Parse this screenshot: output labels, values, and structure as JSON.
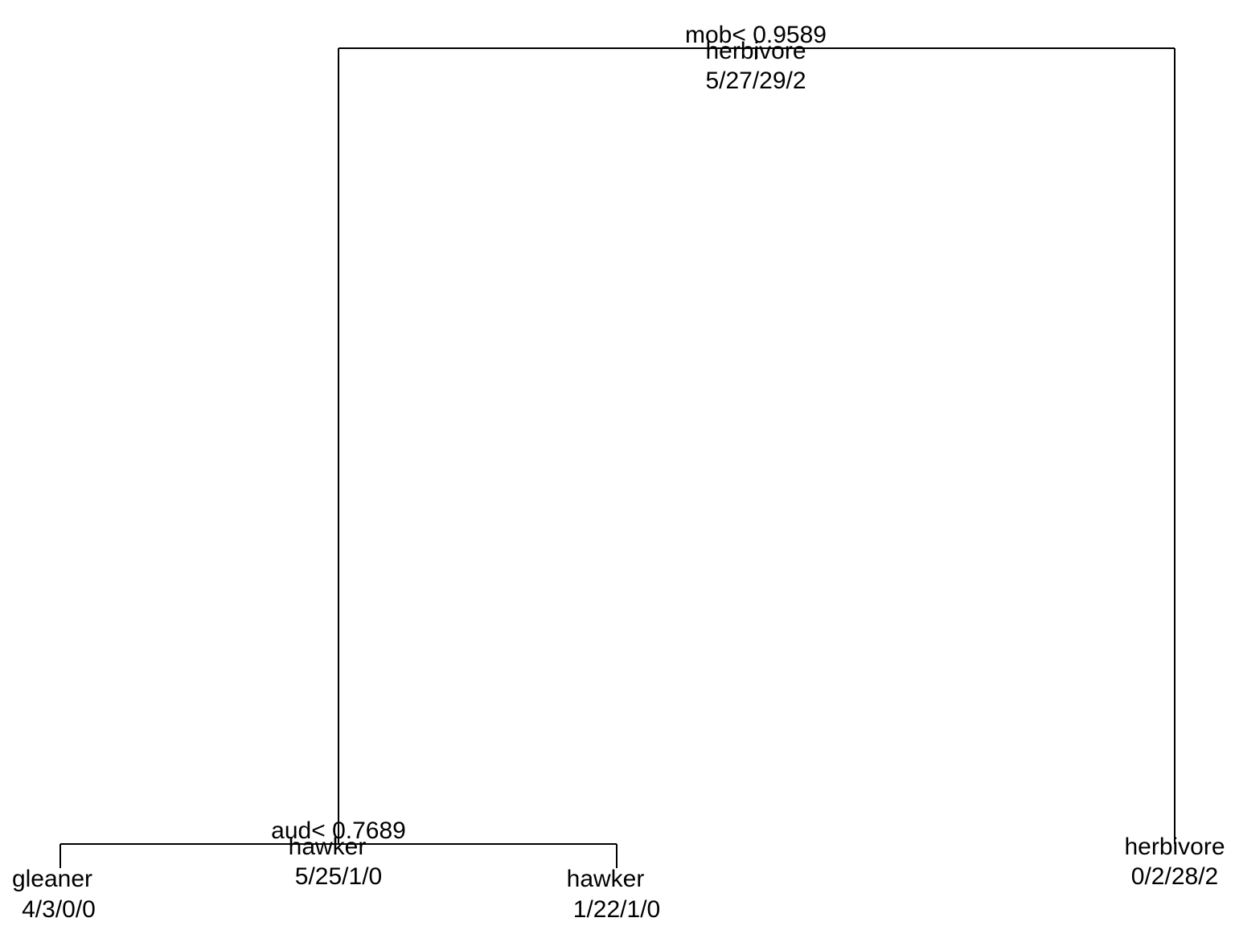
{
  "tree": {
    "root": {
      "split": "mob< 0.9589",
      "class": "herbivore",
      "counts": "5/27/29/2"
    },
    "internal_left": {
      "split": "aud< 0.7689",
      "class": "hawker",
      "counts": "5/25/1/0"
    },
    "leaves": [
      {
        "class": "gleaner",
        "counts": "4/3/0/0"
      },
      {
        "class": "hawker",
        "counts": "1/22/1/0"
      },
      {
        "class": "herbivore",
        "counts": "0/2/28/2"
      }
    ]
  }
}
